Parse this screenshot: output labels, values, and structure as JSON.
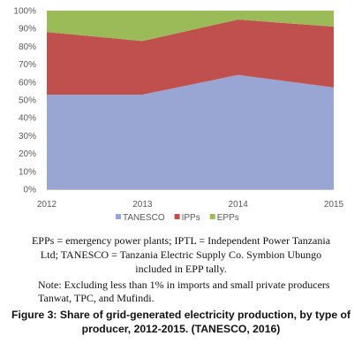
{
  "chart_data": {
    "type": "area",
    "stacked": true,
    "x": [
      "2012",
      "2013",
      "2014",
      "2015"
    ],
    "series": [
      {
        "name": "TANESCO",
        "values": [
          53,
          53,
          64,
          57
        ],
        "color": "#99A5D3"
      },
      {
        "name": "IPPs",
        "values": [
          35,
          30,
          31,
          34
        ],
        "color": "#C0504D"
      },
      {
        "name": "EPPs",
        "values": [
          12,
          17,
          5,
          9
        ],
        "color": "#9BBB59"
      }
    ],
    "ylim": [
      0,
      100
    ],
    "yticks": [
      "0%",
      "10%",
      "20%",
      "30%",
      "40%",
      "50%",
      "60%",
      "70%",
      "80%",
      "90%",
      "100%"
    ],
    "legend_position": "bottom",
    "grid": false
  },
  "notes": {
    "definitions": "EPPs = emergency power plants; IPTL = Independent Power Tanzania Ltd; TANESCO = Tanzania Electric Supply Co. Symbion Ubungo included in EPP tally.",
    "exclusion": "Note: Excluding less than 1% in imports and small private producers Tanwat, TPC, and Mufindi."
  },
  "caption": "Figure 3: Share of grid-generated electricity production, by type of producer, 2012-2015. (TANESCO, 2016)"
}
